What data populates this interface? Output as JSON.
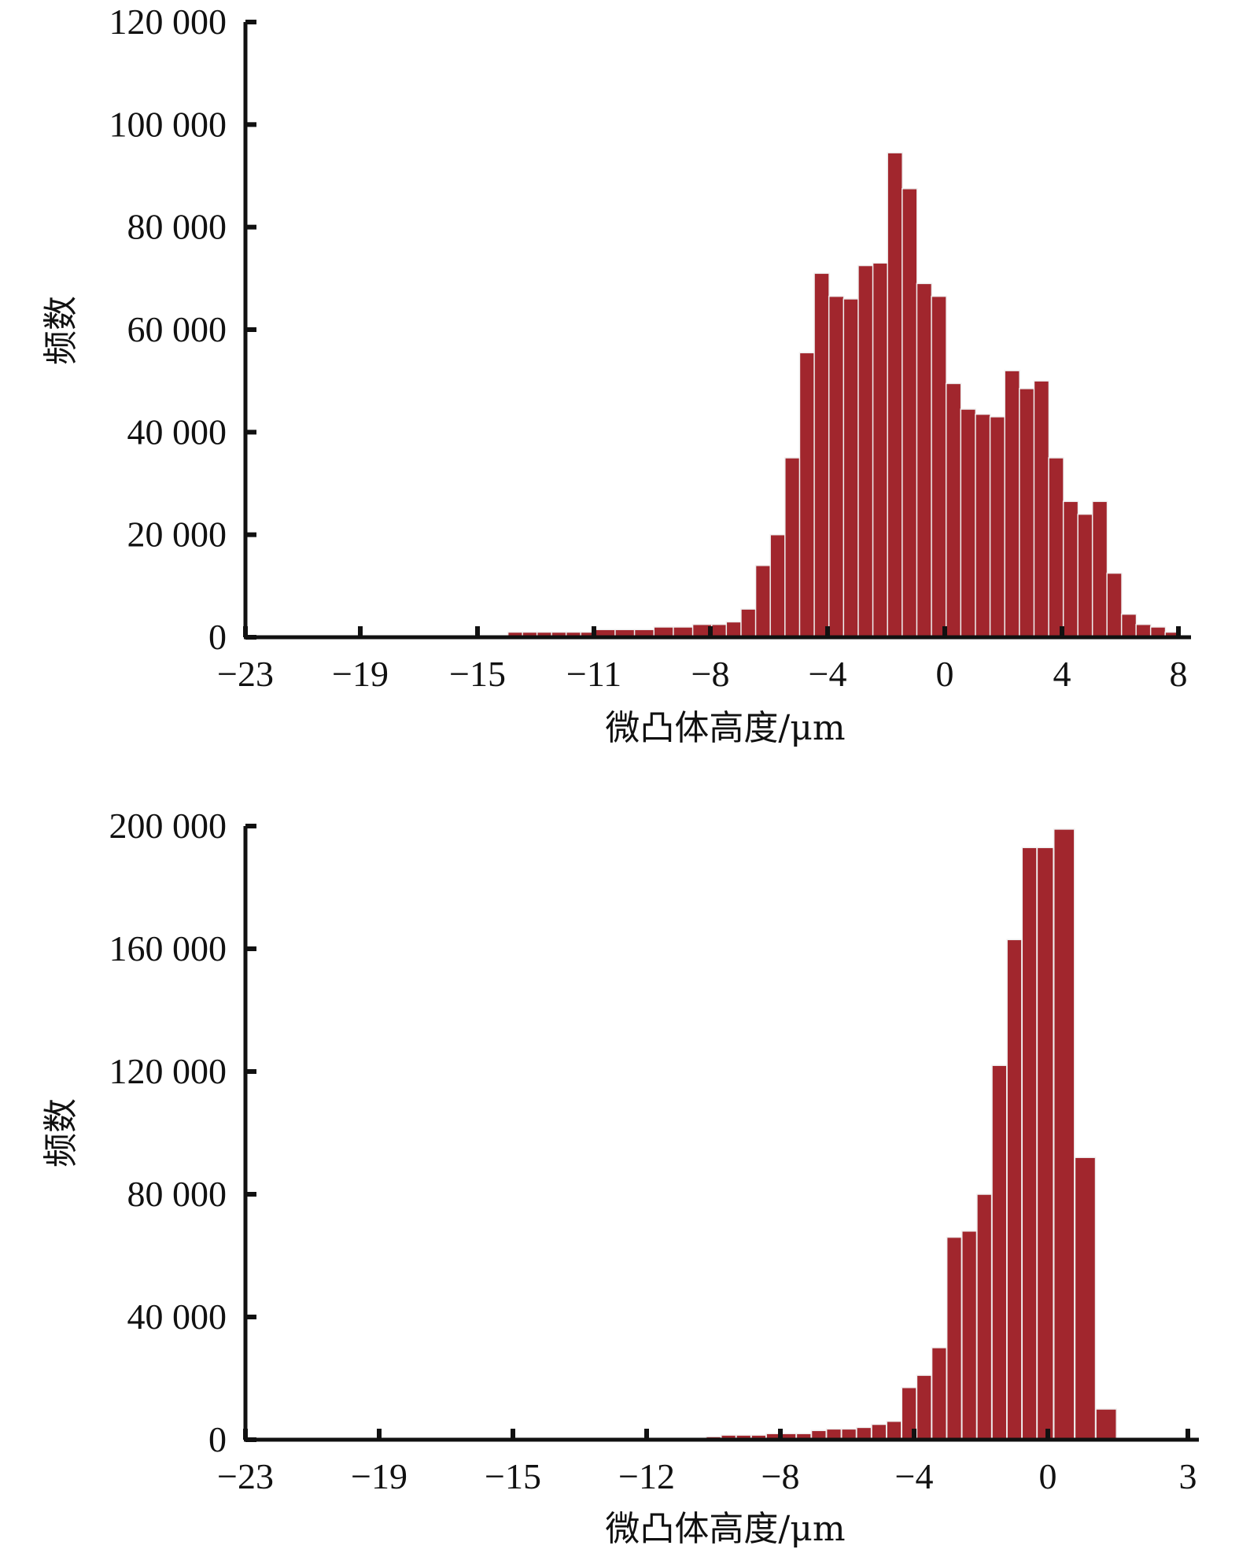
{
  "colors": {
    "bar": "#a1262d",
    "axis": "#111111",
    "background": "#ffffff"
  },
  "chart_data": [
    {
      "type": "bar",
      "title": "",
      "xlabel": "微凸体高度/μm",
      "ylabel": "频数",
      "xlim": [
        -23,
        8
      ],
      "ylim": [
        0,
        120000
      ],
      "grid": false,
      "x_ticks": [
        -23,
        -19,
        -15,
        -11,
        -8,
        -4,
        0,
        4,
        8
      ],
      "x_tick_labels": [
        "−23",
        "−19",
        "−15",
        "−11",
        "−8",
        "−4",
        "0",
        "4",
        "8"
      ],
      "y_ticks": [
        0,
        20000,
        40000,
        60000,
        80000,
        100000,
        120000
      ],
      "y_tick_labels": [
        "0",
        "20 000",
        "40 000",
        "60 000",
        "80 000",
        "100 000",
        "120 000"
      ],
      "bin_width": 0.51,
      "x": [
        -13.7,
        -13.2,
        -12.7,
        -12.2,
        -11.7,
        -11.2,
        -10.7,
        -10.2,
        -9.7,
        -9.2,
        -8.7,
        -8.2,
        -7.7,
        -7.2,
        -6.7,
        -6.2,
        -5.7,
        -5.2,
        -4.7,
        -4.2,
        -3.7,
        -3.2,
        -2.7,
        -2.2,
        -1.7,
        -1.2,
        -0.7,
        -0.2,
        0.3,
        0.8,
        1.3,
        1.8,
        2.3,
        2.8,
        3.3,
        3.8,
        4.3,
        4.8,
        5.3,
        5.8,
        6.3,
        6.8,
        7.3,
        7.8
      ],
      "values": [
        1000,
        1000,
        1000,
        1000,
        1000,
        1000,
        1500,
        1500,
        1500,
        2000,
        2000,
        2500,
        2500,
        3000,
        5500,
        14000,
        20000,
        35000,
        55500,
        71000,
        66500,
        66000,
        72500,
        73000,
        94500,
        87500,
        69000,
        66500,
        49500,
        44500,
        43500,
        43000,
        52000,
        48500,
        50000,
        35000,
        26500,
        24000,
        26500,
        12500,
        4500,
        2500,
        2000,
        1000
      ]
    },
    {
      "type": "bar",
      "title": "",
      "xlabel": "微凸体高度/μm",
      "ylabel": "频数",
      "xlim": [
        -23,
        3
      ],
      "ylim": [
        0,
        200000
      ],
      "grid": false,
      "x_ticks": [
        -23,
        -19,
        -15,
        -12,
        -8,
        -4,
        0,
        3
      ],
      "x_tick_labels": [
        "−23",
        "−19",
        "−15",
        "−12",
        "−8",
        "−4",
        "0",
        "3"
      ],
      "y_ticks": [
        0,
        40000,
        80000,
        120000,
        160000,
        200000
      ],
      "y_tick_labels": [
        "0",
        "40 000",
        "80 000",
        "120 000",
        "160 000",
        "200 000"
      ],
      "bin_width": 0.44,
      "x": [
        -10,
        -9.55,
        -9.1,
        -8.65,
        -8.2,
        -7.75,
        -7.3,
        -6.85,
        -6.4,
        -5.95,
        -5.5,
        -5.05,
        -4.6,
        -4.15,
        -3.7,
        -3.25,
        -2.8,
        -2.35,
        -1.9,
        -1.45,
        -1.0,
        -0.55,
        -0.1,
        0.35,
        0.8,
        1.25,
        1.7
      ],
      "values": [
        1000,
        1500,
        1500,
        1500,
        2000,
        2000,
        2000,
        3000,
        3500,
        3500,
        4000,
        5000,
        6000,
        17000,
        21000,
        30000,
        66000,
        68000,
        80000,
        122000,
        163000,
        193000,
        193000,
        199000,
        92000,
        10000,
        0
      ]
    }
  ]
}
